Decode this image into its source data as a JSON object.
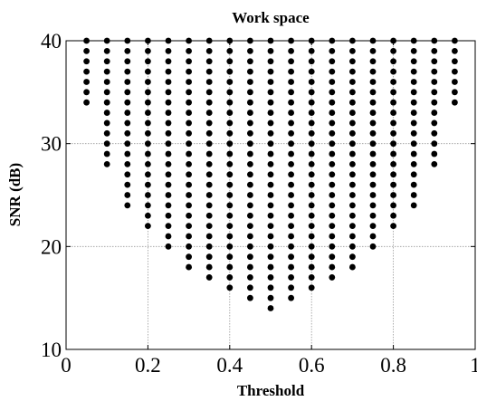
{
  "chart_data": {
    "type": "scatter",
    "title": "Work space",
    "xlabel": "Threshold",
    "ylabel": "SNR (dB)",
    "xlim": [
      0,
      1
    ],
    "ylim": [
      10,
      40
    ],
    "xticks": [
      0,
      0.2,
      0.4,
      0.6,
      0.8,
      1
    ],
    "xtick_labels": [
      "0",
      "0.2",
      "0.4",
      "0.6",
      "0.8",
      "1"
    ],
    "yticks": [
      10,
      20,
      30,
      40
    ],
    "ytick_labels": [
      "10",
      "20",
      "30",
      "40"
    ],
    "grid": true,
    "marker_color": "#000000",
    "series": [
      {
        "columns": [
          {
            "x": 0.05,
            "y_min": 34,
            "y_max": 40,
            "step": 1
          },
          {
            "x": 0.1,
            "y_min": 28,
            "y_max": 40,
            "step": 1
          },
          {
            "x": 0.15,
            "y_min": 24,
            "y_max": 40,
            "step": 1
          },
          {
            "x": 0.2,
            "y_min": 22,
            "y_max": 40,
            "step": 1
          },
          {
            "x": 0.25,
            "y_min": 20,
            "y_max": 40,
            "step": 1
          },
          {
            "x": 0.3,
            "y_min": 18,
            "y_max": 40,
            "step": 1
          },
          {
            "x": 0.35,
            "y_min": 17,
            "y_max": 40,
            "step": 1
          },
          {
            "x": 0.4,
            "y_min": 16,
            "y_max": 40,
            "step": 1
          },
          {
            "x": 0.45,
            "y_min": 15,
            "y_max": 40,
            "step": 1
          },
          {
            "x": 0.5,
            "y_min": 14,
            "y_max": 40,
            "step": 1
          },
          {
            "x": 0.55,
            "y_min": 15,
            "y_max": 40,
            "step": 1
          },
          {
            "x": 0.6,
            "y_min": 16,
            "y_max": 40,
            "step": 1
          },
          {
            "x": 0.65,
            "y_min": 17,
            "y_max": 40,
            "step": 1
          },
          {
            "x": 0.7,
            "y_min": 18,
            "y_max": 40,
            "step": 1
          },
          {
            "x": 0.75,
            "y_min": 20,
            "y_max": 40,
            "step": 1
          },
          {
            "x": 0.8,
            "y_min": 22,
            "y_max": 40,
            "step": 1
          },
          {
            "x": 0.85,
            "y_min": 24,
            "y_max": 40,
            "step": 1
          },
          {
            "x": 0.9,
            "y_min": 28,
            "y_max": 40,
            "step": 1
          },
          {
            "x": 0.95,
            "y_min": 34,
            "y_max": 40,
            "step": 1
          }
        ]
      }
    ]
  }
}
